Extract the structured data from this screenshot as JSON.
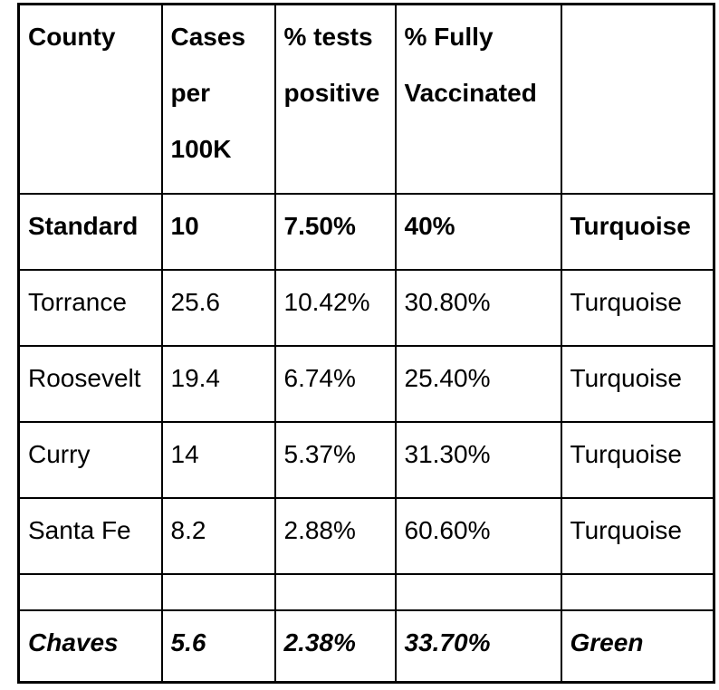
{
  "page": {
    "background_color": "#ffffff",
    "border_color": "#000000",
    "text_color": "#000000"
  },
  "table": {
    "header_cells": [
      "County",
      "Cases per 100K",
      "% tests positive",
      "% Fully Vaccinated",
      ""
    ],
    "rows": [
      {
        "name": "standard",
        "emphasis": "bold",
        "cells": [
          "Standard",
          "10",
          "7.50%",
          "40%",
          "Turquoise"
        ]
      },
      {
        "name": "torrance",
        "emphasis": "none",
        "cells": [
          "Torrance",
          "25.6",
          "10.42%",
          "30.80%",
          "Turquoise"
        ]
      },
      {
        "name": "roosevelt",
        "emphasis": "none",
        "cells": [
          "Roosevelt",
          "19.4",
          "6.74%",
          "25.40%",
          "Turquoise"
        ]
      },
      {
        "name": "curry",
        "emphasis": "none",
        "cells": [
          "Curry",
          "14",
          "5.37%",
          "31.30%",
          "Turquoise"
        ]
      },
      {
        "name": "santa-fe",
        "emphasis": "none",
        "cells": [
          "Santa Fe",
          "8.2",
          "2.88%",
          "60.60%",
          "Turquoise"
        ]
      },
      {
        "name": "spacer",
        "emphasis": "none",
        "cells": [
          "",
          "",
          "",
          "",
          ""
        ]
      },
      {
        "name": "chaves",
        "emphasis": "bold-italic",
        "cells": [
          "Chaves",
          "5.6",
          "2.38%",
          "33.70%",
          "Green"
        ]
      }
    ]
  }
}
